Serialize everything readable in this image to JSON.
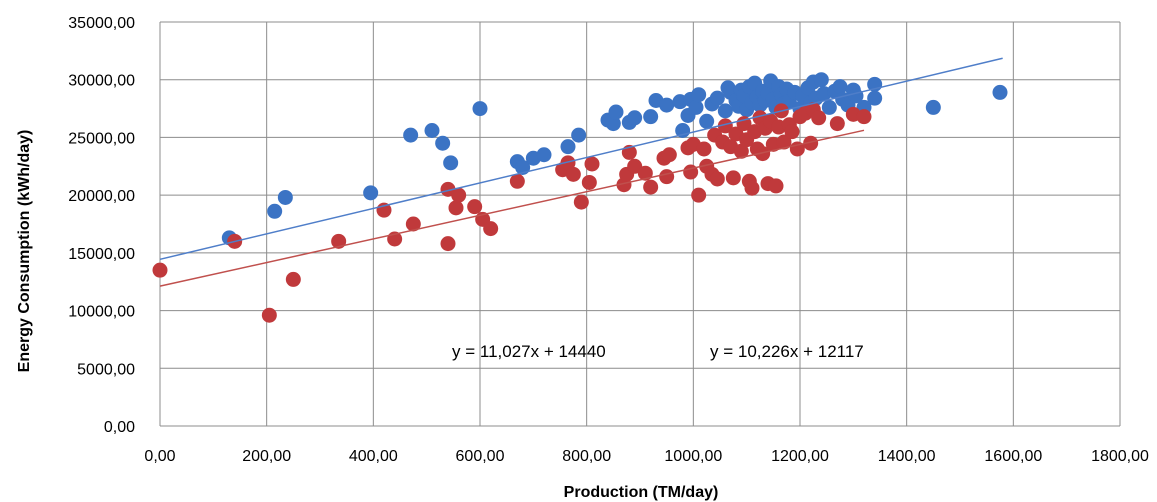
{
  "chart_data": {
    "type": "scatter",
    "xlabel": "Production (TM/day)",
    "ylabel": "Energy Consumption (kWh/day)",
    "xlim": [
      0,
      1800
    ],
    "ylim": [
      0,
      35000
    ],
    "x_ticks": [
      "0,00",
      "200,00",
      "400,00",
      "600,00",
      "800,00",
      "1000,00",
      "1200,00",
      "1400,00",
      "1600,00",
      "1800,00"
    ],
    "y_ticks": [
      "0,00",
      "5000,00",
      "10000,00",
      "15000,00",
      "20000,00",
      "25000,00",
      "30000,00",
      "35000,00"
    ],
    "grid": true,
    "legend": "none",
    "annotations": [
      "y = 11,027x + 14440",
      "y = 10,226x + 12117"
    ],
    "series": [
      {
        "color": "#3b73c4",
        "trendline": {
          "slope": 11.027,
          "intercept": 14440,
          "x_range": [
            0,
            1580
          ],
          "color": "#4f7ec9"
        },
        "points": [
          [
            130,
            16300
          ],
          [
            215,
            18600
          ],
          [
            235,
            19800
          ],
          [
            395,
            20200
          ],
          [
            470,
            25200
          ],
          [
            510,
            25600
          ],
          [
            530,
            24500
          ],
          [
            545,
            22800
          ],
          [
            600,
            27500
          ],
          [
            670,
            22900
          ],
          [
            680,
            22400
          ],
          [
            700,
            23200
          ],
          [
            720,
            23500
          ],
          [
            765,
            24200
          ],
          [
            785,
            25200
          ],
          [
            840,
            26500
          ],
          [
            850,
            26200
          ],
          [
            855,
            27200
          ],
          [
            880,
            26300
          ],
          [
            890,
            26700
          ],
          [
            920,
            26800
          ],
          [
            930,
            28200
          ],
          [
            950,
            27800
          ],
          [
            975,
            28100
          ],
          [
            980,
            25600
          ],
          [
            990,
            26900
          ],
          [
            995,
            28300
          ],
          [
            1005,
            27600
          ],
          [
            1010,
            28700
          ],
          [
            1025,
            26400
          ],
          [
            1035,
            27900
          ],
          [
            1045,
            28400
          ],
          [
            1060,
            27300
          ],
          [
            1065,
            29300
          ],
          [
            1070,
            28900
          ],
          [
            1080,
            28200
          ],
          [
            1085,
            27700
          ],
          [
            1090,
            29100
          ],
          [
            1095,
            28600
          ],
          [
            1100,
            27400
          ],
          [
            1105,
            29400
          ],
          [
            1110,
            28000
          ],
          [
            1115,
            29700
          ],
          [
            1120,
            28500
          ],
          [
            1125,
            27800
          ],
          [
            1130,
            29000
          ],
          [
            1135,
            28200
          ],
          [
            1140,
            28800
          ],
          [
            1145,
            29900
          ],
          [
            1150,
            28300
          ],
          [
            1155,
            27600
          ],
          [
            1160,
            29400
          ],
          [
            1165,
            28700
          ],
          [
            1170,
            27900
          ],
          [
            1175,
            29200
          ],
          [
            1180,
            28100
          ],
          [
            1190,
            28900
          ],
          [
            1200,
            27500
          ],
          [
            1205,
            28600
          ],
          [
            1215,
            29300
          ],
          [
            1220,
            28000
          ],
          [
            1225,
            29800
          ],
          [
            1230,
            28400
          ],
          [
            1240,
            30000
          ],
          [
            1245,
            28800
          ],
          [
            1255,
            27600
          ],
          [
            1265,
            29000
          ],
          [
            1275,
            29400
          ],
          [
            1280,
            28300
          ],
          [
            1290,
            27800
          ],
          [
            1300,
            29100
          ],
          [
            1305,
            28600
          ],
          [
            1320,
            27600
          ],
          [
            1340,
            28400
          ],
          [
            1340,
            29600
          ],
          [
            1450,
            27600
          ],
          [
            1575,
            28900
          ]
        ]
      },
      {
        "color": "#c0393b",
        "trendline": {
          "slope": 10.226,
          "intercept": 12117,
          "x_range": [
            0,
            1320
          ],
          "color": "#c0504d"
        },
        "points": [
          [
            0,
            13500
          ],
          [
            140,
            16000
          ],
          [
            205,
            9600
          ],
          [
            250,
            12700
          ],
          [
            335,
            16000
          ],
          [
            420,
            18700
          ],
          [
            440,
            16200
          ],
          [
            475,
            17500
          ],
          [
            540,
            20500
          ],
          [
            540,
            15800
          ],
          [
            555,
            18900
          ],
          [
            560,
            20000
          ],
          [
            590,
            19000
          ],
          [
            605,
            17900
          ],
          [
            620,
            17100
          ],
          [
            670,
            21200
          ],
          [
            755,
            22200
          ],
          [
            765,
            22800
          ],
          [
            775,
            21800
          ],
          [
            790,
            19400
          ],
          [
            805,
            21100
          ],
          [
            810,
            22700
          ],
          [
            870,
            20900
          ],
          [
            875,
            21800
          ],
          [
            880,
            23700
          ],
          [
            890,
            22500
          ],
          [
            910,
            21900
          ],
          [
            920,
            20700
          ],
          [
            945,
            23200
          ],
          [
            950,
            21600
          ],
          [
            955,
            23500
          ],
          [
            990,
            24100
          ],
          [
            995,
            22000
          ],
          [
            1000,
            24400
          ],
          [
            1010,
            20000
          ],
          [
            1020,
            24000
          ],
          [
            1025,
            22500
          ],
          [
            1035,
            21800
          ],
          [
            1040,
            25200
          ],
          [
            1045,
            21400
          ],
          [
            1055,
            24600
          ],
          [
            1060,
            26000
          ],
          [
            1070,
            24200
          ],
          [
            1075,
            21500
          ],
          [
            1080,
            25300
          ],
          [
            1090,
            23800
          ],
          [
            1095,
            26200
          ],
          [
            1100,
            24800
          ],
          [
            1105,
            21200
          ],
          [
            1110,
            20600
          ],
          [
            1115,
            25500
          ],
          [
            1120,
            24000
          ],
          [
            1125,
            26700
          ],
          [
            1130,
            23600
          ],
          [
            1135,
            25800
          ],
          [
            1140,
            21000
          ],
          [
            1145,
            26400
          ],
          [
            1150,
            24400
          ],
          [
            1155,
            20800
          ],
          [
            1160,
            25900
          ],
          [
            1165,
            27300
          ],
          [
            1170,
            24600
          ],
          [
            1180,
            26100
          ],
          [
            1185,
            25500
          ],
          [
            1195,
            24000
          ],
          [
            1200,
            26800
          ],
          [
            1210,
            27100
          ],
          [
            1220,
            24500
          ],
          [
            1225,
            27400
          ],
          [
            1235,
            26700
          ],
          [
            1270,
            26200
          ],
          [
            1300,
            27000
          ],
          [
            1320,
            26800
          ]
        ]
      }
    ]
  }
}
